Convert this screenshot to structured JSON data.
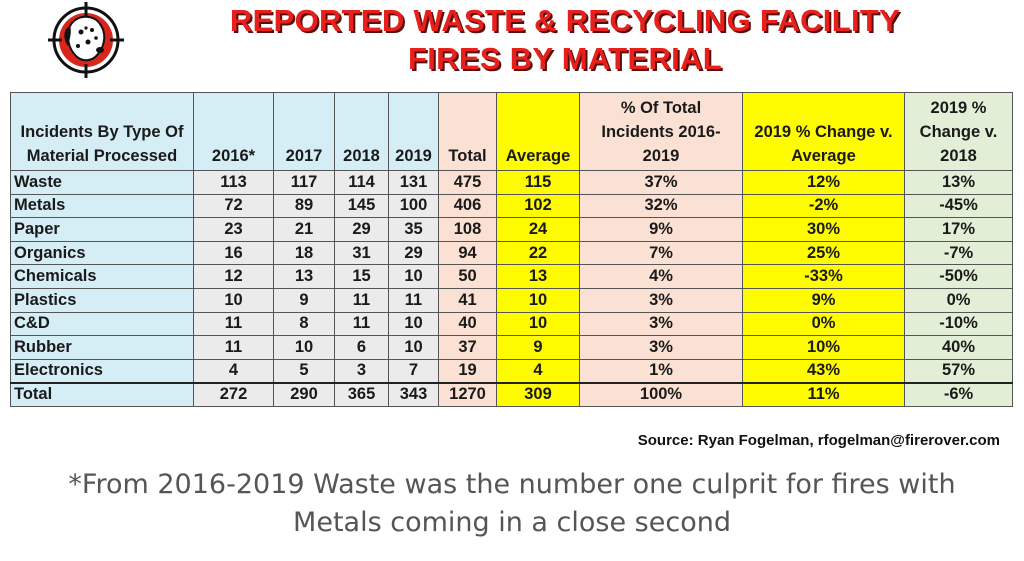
{
  "title_line1": "REPORTED WASTE & RECYCLING FACILITY",
  "title_line2": "FIRES BY MATERIAL",
  "logo_icon": "dalmatian-firedog-icon",
  "colors": {
    "title_red": "#e8201c",
    "header_blue": "#d5eef5",
    "highlight_yellow": "#fffc00",
    "peach": "#fbe1d4",
    "light_green": "#e2efd6",
    "gray": "#ebebeb"
  },
  "chart_data": {
    "type": "table",
    "headers": [
      "Incidents By Type Of Material Processed",
      "2016*",
      "2017",
      "2018",
      "2019",
      "Total",
      "Average",
      "% Of Total Incidents 2016-2019",
      "2019 % Change v. Average",
      "2019 % Change v. 2018"
    ],
    "rows": [
      [
        "Waste",
        "113",
        "117",
        "114",
        "131",
        "475",
        "115",
        "37%",
        "12%",
        "13%"
      ],
      [
        "Metals",
        "72",
        "89",
        "145",
        "100",
        "406",
        "102",
        "32%",
        "-2%",
        "-45%"
      ],
      [
        "Paper",
        "23",
        "21",
        "29",
        "35",
        "108",
        "24",
        "9%",
        "30%",
        "17%"
      ],
      [
        "Organics",
        "16",
        "18",
        "31",
        "29",
        "94",
        "22",
        "7%",
        "25%",
        "-7%"
      ],
      [
        "Chemicals",
        "12",
        "13",
        "15",
        "10",
        "50",
        "13",
        "4%",
        "-33%",
        "-50%"
      ],
      [
        "Plastics",
        "10",
        "9",
        "11",
        "11",
        "41",
        "10",
        "3%",
        "9%",
        "0%"
      ],
      [
        "C&D",
        "11",
        "8",
        "11",
        "10",
        "40",
        "10",
        "3%",
        "0%",
        "-10%"
      ],
      [
        "Rubber",
        "11",
        "10",
        "6",
        "10",
        "37",
        "9",
        "3%",
        "10%",
        "40%"
      ],
      [
        "Electronics",
        "4",
        "5",
        "3",
        "7",
        "19",
        "4",
        "1%",
        "43%",
        "57%"
      ]
    ],
    "total_row": [
      "Total",
      "272",
      "290",
      "365",
      "343",
      "1270",
      "309",
      "100%",
      "11%",
      "-6%"
    ]
  },
  "source": "Source: Ryan Fogelman, rfogelman@firerover.com",
  "note_line1": "*From 2016-2019 Waste was the number one culprit for fires with",
  "note_line2": "Metals coming in a close second"
}
